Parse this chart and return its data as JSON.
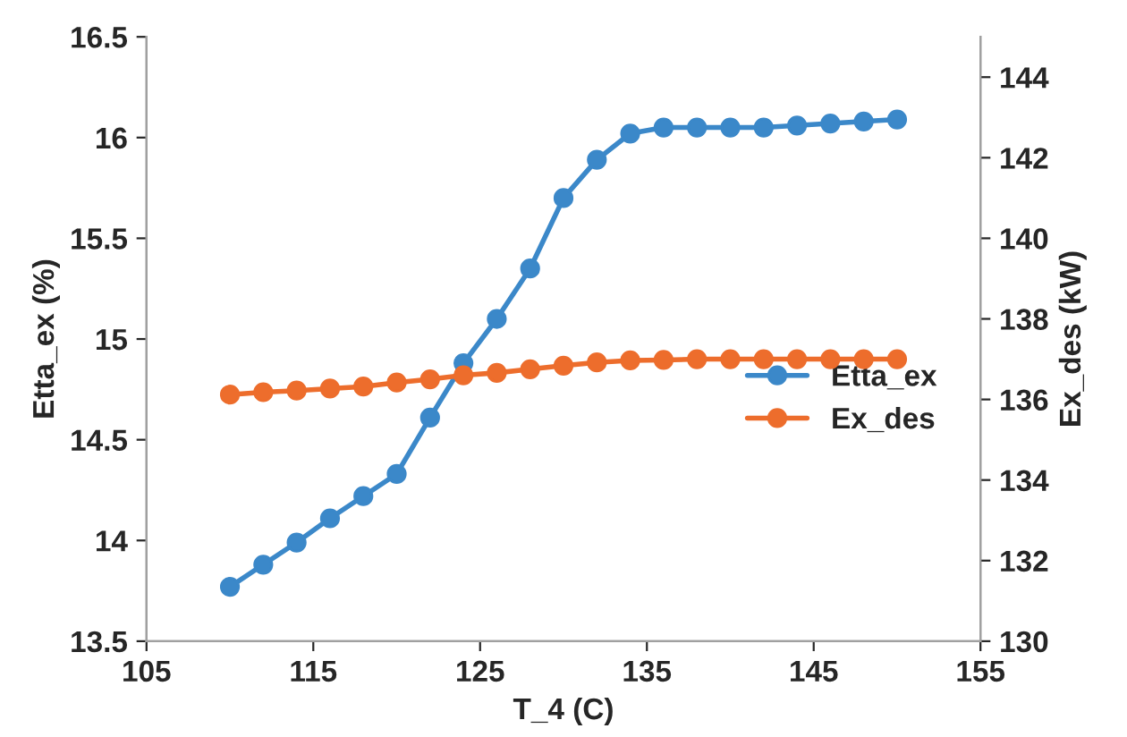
{
  "chart_data": {
    "type": "line",
    "xlabel": "T_4 (C)",
    "ylabel": "Etta_ex (%)",
    "y2label": "Ex_des (kW)",
    "x": [
      110,
      112,
      114,
      116,
      118,
      120,
      122,
      124,
      126,
      128,
      130,
      132,
      134,
      136,
      138,
      140,
      142,
      144,
      146,
      148,
      150
    ],
    "series": [
      {
        "name": "Etta_ex",
        "color": "#3b88c9",
        "values": [
          13.77,
          13.88,
          13.99,
          14.11,
          14.22,
          14.33,
          14.61,
          14.88,
          15.1,
          15.35,
          15.7,
          15.89,
          16.02,
          16.05,
          16.05,
          16.05,
          16.05,
          16.06,
          16.07,
          16.08,
          16.09
        ]
      },
      {
        "name": "Ex_des",
        "color": "#ed6d2c",
        "axis": "y2",
        "values": [
          136.12,
          136.18,
          136.22,
          136.27,
          136.32,
          136.42,
          136.5,
          136.6,
          136.66,
          136.75,
          136.84,
          136.92,
          136.97,
          136.98,
          137.0,
          137.0,
          137.0,
          137.0,
          137.0,
          137.0,
          137.0
        ]
      }
    ],
    "xlim": [
      105,
      155
    ],
    "xticks": [
      105,
      115,
      125,
      135,
      145,
      155
    ],
    "ylim": [
      13.5,
      16.5
    ],
    "yticks": [
      13.5,
      14,
      14.5,
      15,
      15.5,
      16,
      16.5
    ],
    "y2lim": [
      130,
      145
    ],
    "y2ticks": [
      130,
      132,
      134,
      136,
      138,
      140,
      142,
      144
    ],
    "marker": "circle",
    "legend": "right",
    "grid": false
  }
}
